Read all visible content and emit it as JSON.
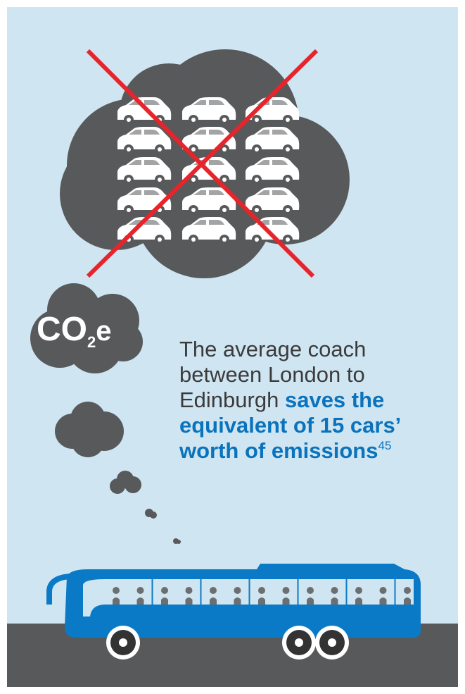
{
  "badge": {
    "main": "CO",
    "subscript": "2",
    "suffix": "e"
  },
  "statement": {
    "text": "The average coach between London to Edinburgh",
    "highlight": "saves the equivalent of 15 cars’ worth of emissions",
    "reference": "45"
  }
}
